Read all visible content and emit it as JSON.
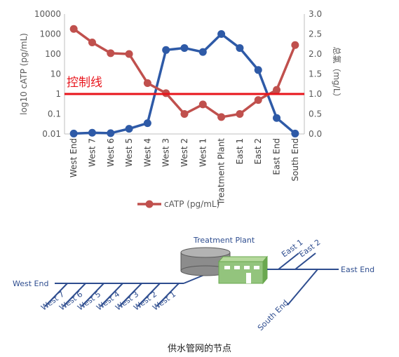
{
  "chart_data": {
    "type": "line",
    "categories": [
      "West End",
      "West 7",
      "West 6",
      "West 5",
      "West 4",
      "West 3",
      "West 2",
      "West 1",
      "Treatment Plant",
      "East 1",
      "East 2",
      "East End",
      "South End"
    ],
    "series": [
      {
        "name": "",
        "axis": "right",
        "color": "#2e5aa7",
        "values": [
          0.01,
          0.03,
          0.02,
          0.13,
          0.27,
          2.1,
          2.15,
          2.05,
          2.5,
          2.15,
          1.6,
          0.4,
          0.01
        ]
      },
      {
        "name": "cATP (pg/mL)",
        "axis": "left",
        "color": "#c0504d",
        "values": [
          1800,
          380,
          110,
          100,
          3.5,
          1.1,
          0.1,
          0.3,
          0.07,
          0.1,
          0.5,
          1.6,
          280
        ]
      }
    ],
    "yleft": {
      "label": "log10 cATP (pg/mL)",
      "scale": "log",
      "ticks": [
        "10000",
        "1000",
        "100",
        "10",
        "1",
        "0.1",
        "0.01"
      ],
      "ylim": [
        0.01,
        10000
      ]
    },
    "yright": {
      "label": "总氯（mg/L）",
      "ticks": [
        "3.0",
        "2.5",
        "2.0",
        "1.5",
        "1.0",
        "0.5",
        "0.0"
      ],
      "ylim": [
        0,
        3
      ]
    },
    "control_line": {
      "label": "控制线",
      "value": 1,
      "color": "#e8141b"
    },
    "legend": {
      "label": "cATP (pg/mL)",
      "placement": "bottom"
    },
    "grid": false
  },
  "network": {
    "plant_label": "Treatment Plant",
    "west_end": "West End",
    "west_nodes": [
      "West 7",
      "West 6",
      "West 5",
      "West 4",
      "West 3",
      "West 2",
      "West 1"
    ],
    "east_end": "East End",
    "east_nodes": [
      "East 1",
      "East 2"
    ],
    "south_end": "South End",
    "line_color": "#2e4d8f"
  },
  "caption": "供水管网的节点"
}
